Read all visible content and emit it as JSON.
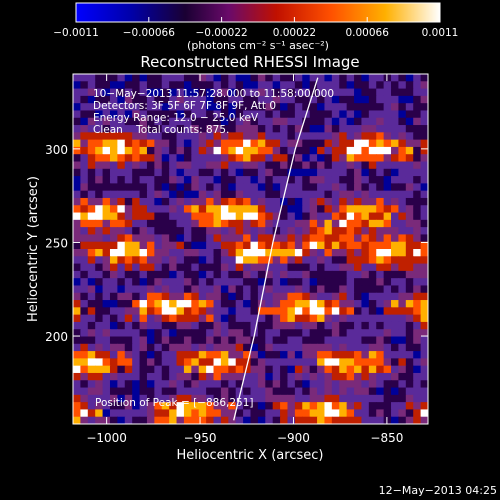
{
  "chart_data": {
    "type": "heatmap",
    "title": "Reconstructed RHESSI Image",
    "xlabel": "Heliocentric X (arcsec)",
    "ylabel": "Heliocentric Y (arcsec)",
    "xlim": [
      -1018,
      -828
    ],
    "ylim": [
      153,
      340
    ],
    "x_ticks": [
      -1000,
      -950,
      -900,
      -850
    ],
    "y_ticks": [
      200,
      250,
      300
    ],
    "x_tick_labels": [
      "−1000",
      "−950",
      "−900",
      "−850"
    ],
    "y_tick_labels": [
      "200",
      "250",
      "300"
    ],
    "colorbar": {
      "range": [
        -0.0011,
        0.0011
      ],
      "ticks": [
        -0.0011,
        -0.00066,
        -0.00022,
        0.00022,
        0.00066,
        0.0011
      ],
      "tick_labels": [
        "−0.0011",
        "−0.00066",
        "−0.00022",
        "0.00022",
        "0.00066",
        "0.0011"
      ],
      "units_label": "(photons cm⁻² s⁻¹ asec⁻²)"
    },
    "annotations": {
      "time_range": "10−May−2013 11:57:28.000 to 11:58:00.000",
      "detectors": "Detectors: 3F 5F 6F 7F 8F 9F, Att 0",
      "energy_range": "Energy Range: 12.0 − 25.0 keV",
      "clean_counts": "Clean    Total counts: 875.",
      "peak_position": "Position of Peak = [−886,251]"
    },
    "peak": {
      "x": -886,
      "y": 251
    },
    "limb_curve": [
      [
        -932,
        155
      ],
      [
        -921,
        200
      ],
      [
        -911,
        250
      ],
      [
        -899,
        300
      ],
      [
        -887,
        338
      ]
    ],
    "image_bands_y": [
      300,
      265,
      245,
      215,
      185,
      160
    ],
    "colormap": [
      "#0000ff",
      "#000099",
      "#2a004a",
      "#5a2a9a",
      "#7a2a7a",
      "#c02000",
      "#ff5000",
      "#ffb000",
      "#ffffff"
    ]
  },
  "footer": {
    "timestamp": "12−May−2013 04:25"
  }
}
